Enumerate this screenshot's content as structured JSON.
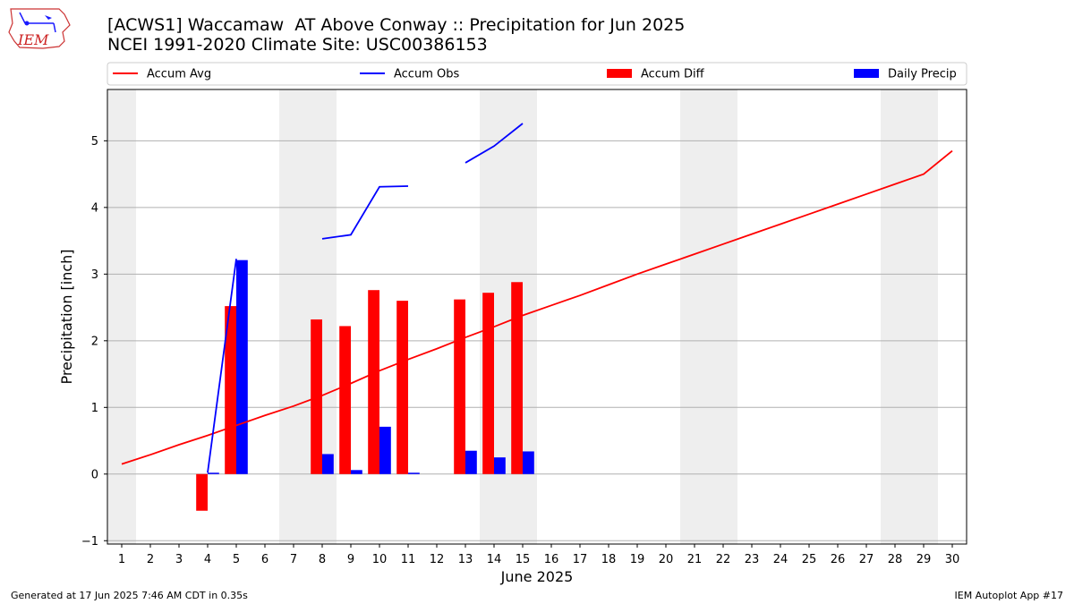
{
  "header": {
    "title_line1": "[ACWS1] Waccamaw  AT Above Conway :: Precipitation for Jun 2025",
    "title_line2": "NCEI 1991-2020 Climate Site: USC00386153",
    "logo_text": "IEM"
  },
  "footer": {
    "generated": "Generated at 17 Jun 2025 7:46 AM CDT in 0.35s",
    "app": "IEM Autoplot App #17"
  },
  "colors": {
    "accum_avg": "#ff0000",
    "accum_obs": "#0000ff",
    "accum_diff": "#ff0000",
    "daily_precip": "#0000ff",
    "weekend_shade": "#eeeeee",
    "grid": "#b0b0b0"
  },
  "chart_data": {
    "type": "bar",
    "xlabel": "June 2025",
    "ylabel": "Precipitation [inch]",
    "xlim": [
      0.5,
      30.5
    ],
    "ylim": [
      -1.05,
      5.77
    ],
    "yticks": [
      -1,
      0,
      1,
      2,
      3,
      4,
      5
    ],
    "days": [
      1,
      2,
      3,
      4,
      5,
      6,
      7,
      8,
      9,
      10,
      11,
      12,
      13,
      14,
      15,
      16,
      17,
      18,
      19,
      20,
      21,
      22,
      23,
      24,
      25,
      26,
      27,
      28,
      29,
      30
    ],
    "weekend_bands": [
      [
        0.5,
        1.5
      ],
      [
        6.5,
        8.5
      ],
      [
        13.5,
        15.5
      ],
      [
        20.5,
        22.5
      ],
      [
        27.5,
        29.5
      ]
    ],
    "legend": [
      "Accum Avg",
      "Accum Obs",
      "Accum Diff",
      "Daily Precip"
    ],
    "legend_position": "top",
    "grid": "y",
    "series": [
      {
        "name": "Accum Avg",
        "kind": "line",
        "x": [
          1,
          2,
          3,
          4,
          5,
          6,
          7,
          8,
          9,
          10,
          11,
          12,
          13,
          14,
          15,
          16,
          17,
          18,
          19,
          20,
          21,
          22,
          23,
          24,
          25,
          26,
          27,
          28,
          29,
          30
        ],
        "values": [
          0.15,
          0.29,
          0.44,
          0.58,
          0.73,
          0.88,
          1.02,
          1.18,
          1.36,
          1.55,
          1.72,
          1.88,
          2.05,
          2.21,
          2.38,
          2.53,
          2.68,
          2.84,
          3.0,
          3.15,
          3.3,
          3.45,
          3.6,
          3.75,
          3.9,
          4.05,
          4.2,
          4.35,
          4.5,
          4.85
        ]
      },
      {
        "name": "Accum Obs",
        "kind": "line",
        "segments": [
          {
            "x": [
              4,
              5
            ],
            "values": [
              0.02,
              3.23
            ]
          },
          {
            "x": [
              8,
              9,
              10,
              11
            ],
            "values": [
              3.53,
              3.59,
              4.31,
              4.32
            ]
          },
          {
            "x": [
              13,
              14,
              15
            ],
            "values": [
              4.67,
              4.92,
              5.26
            ]
          }
        ]
      },
      {
        "name": "Accum Diff",
        "kind": "bar",
        "x": [
          4,
          5,
          8,
          9,
          10,
          11,
          13,
          14,
          15
        ],
        "values": [
          -0.55,
          2.52,
          2.32,
          2.22,
          2.76,
          2.6,
          2.62,
          2.72,
          2.88
        ]
      },
      {
        "name": "Daily Precip",
        "kind": "bar",
        "x": [
          4,
          5,
          8,
          9,
          10,
          11,
          13,
          14,
          15
        ],
        "values": [
          0.02,
          3.21,
          0.3,
          0.06,
          0.71,
          0.02,
          0.35,
          0.25,
          0.34
        ]
      }
    ]
  }
}
